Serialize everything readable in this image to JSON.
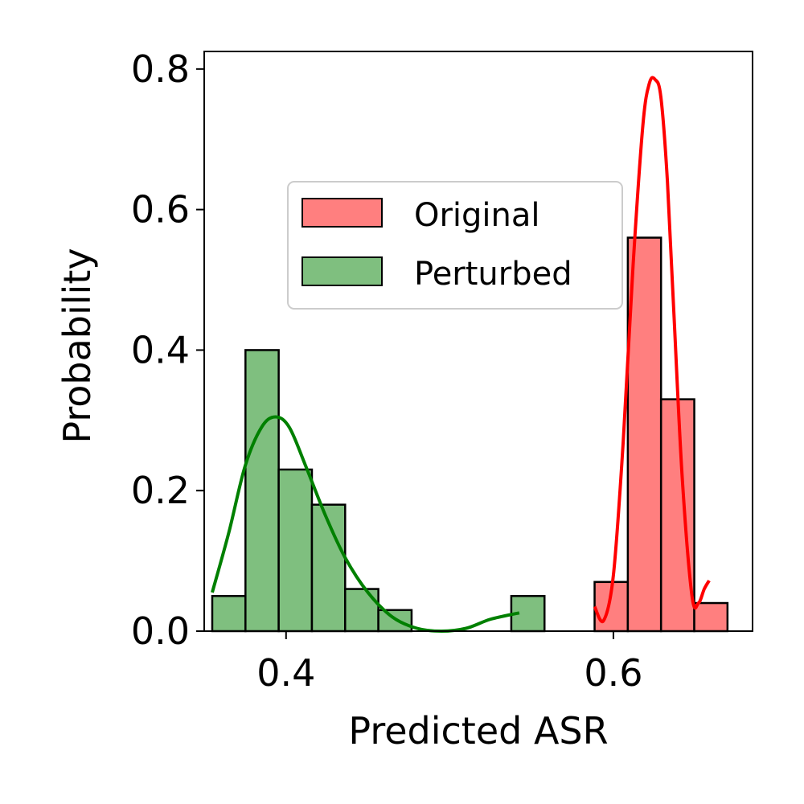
{
  "chart_data": {
    "type": "histogram",
    "xlabel": "Predicted ASR",
    "ylabel": "Probability",
    "xlim": [
      0.35,
      0.685
    ],
    "ylim": [
      0,
      0.825
    ],
    "xticks": [
      {
        "value": 0.4,
        "label": "0.4"
      },
      {
        "value": 0.6,
        "label": "0.6"
      }
    ],
    "yticks": [
      {
        "value": 0.0,
        "label": "0.0"
      },
      {
        "value": 0.2,
        "label": "0.2"
      },
      {
        "value": 0.4,
        "label": "0.4"
      },
      {
        "value": 0.6,
        "label": "0.6"
      },
      {
        "value": 0.8,
        "label": "0.8"
      }
    ],
    "legend_position": "upper-center",
    "grid": false,
    "series": [
      {
        "name": "Original",
        "bar_color": "#ff7f7f",
        "kde_color": "#ff0000",
        "bins": [
          {
            "x0": 0.5885,
            "x1": 0.6088,
            "value": 0.07
          },
          {
            "x0": 0.6088,
            "x1": 0.6291,
            "value": 0.56
          },
          {
            "x0": 0.6291,
            "x1": 0.6494,
            "value": 0.33
          },
          {
            "x0": 0.6494,
            "x1": 0.6697,
            "value": 0.04
          }
        ],
        "kde": {
          "x": [
            0.5885,
            0.594,
            0.6,
            0.606,
            0.612,
            0.618,
            0.622,
            0.6255,
            0.629,
            0.633,
            0.637,
            0.642,
            0.648,
            0.652,
            0.6555,
            0.6585
          ],
          "y": [
            0.035,
            0.015,
            0.08,
            0.27,
            0.52,
            0.72,
            0.78,
            0.785,
            0.76,
            0.64,
            0.45,
            0.22,
            0.05,
            0.04,
            0.06,
            0.072
          ]
        }
      },
      {
        "name": "Perturbed",
        "bar_color": "#7fbf7f",
        "kde_color": "#008000",
        "bins": [
          {
            "x0": 0.3549,
            "x1": 0.3752,
            "value": 0.05
          },
          {
            "x0": 0.3752,
            "x1": 0.3955,
            "value": 0.4
          },
          {
            "x0": 0.3955,
            "x1": 0.4158,
            "value": 0.23
          },
          {
            "x0": 0.4158,
            "x1": 0.4361,
            "value": 0.18
          },
          {
            "x0": 0.4361,
            "x1": 0.4564,
            "value": 0.06
          },
          {
            "x0": 0.4564,
            "x1": 0.4767,
            "value": 0.03
          },
          {
            "x0": 0.5376,
            "x1": 0.5579,
            "value": 0.05
          }
        ],
        "kde": {
          "x": [
            0.3549,
            0.365,
            0.375,
            0.385,
            0.3935,
            0.402,
            0.412,
            0.424,
            0.436,
            0.45,
            0.465,
            0.48,
            0.495,
            0.51,
            0.525,
            0.5425
          ],
          "y": [
            0.055,
            0.14,
            0.235,
            0.29,
            0.305,
            0.29,
            0.235,
            0.165,
            0.105,
            0.055,
            0.02,
            0.004,
            0.0,
            0.004,
            0.017,
            0.026
          ]
        }
      }
    ]
  }
}
